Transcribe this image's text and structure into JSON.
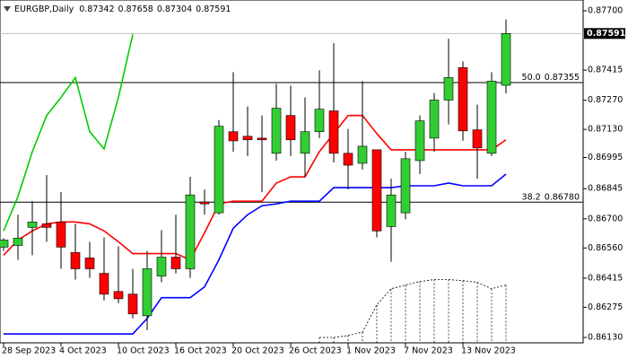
{
  "chart_data": {
    "type": "candlestick",
    "symbol": "EURGBP,Daily",
    "categories": [
      "28 Sep 2023",
      null,
      null,
      null,
      "4 Oct 2023",
      null,
      null,
      null,
      "10 Oct 2023",
      null,
      null,
      null,
      "16 Oct 2023",
      null,
      null,
      null,
      "20 Oct 2023",
      null,
      null,
      null,
      "26 Oct 2023",
      null,
      null,
      null,
      "1 Nov 2023",
      null,
      null,
      null,
      "7 Nov 2023",
      null,
      null,
      null,
      "13 Nov 2023",
      null,
      null,
      null
    ],
    "open": [
      0.86564,
      0.86572,
      0.86659,
      0.86676,
      0.86685,
      0.86538,
      0.86512,
      0.86438,
      0.86351,
      0.86338,
      0.86234,
      0.86425,
      0.86516,
      0.8646,
      0.86781,
      0.86729,
      0.87119,
      0.87097,
      0.87088,
      0.87015,
      0.87197,
      0.87015,
      0.87119,
      0.87219,
      0.87015,
      0.86967,
      0.87032,
      0.86663,
      0.86729,
      0.8698,
      0.87088,
      0.87271,
      0.87427,
      0.87128,
      0.87015,
      0.87342
    ],
    "high": [
      0.86607,
      0.8672,
      0.86785,
      0.86911,
      0.86828,
      0.86676,
      0.8659,
      0.86611,
      0.86568,
      0.8646,
      0.86546,
      0.86646,
      0.8672,
      0.86902,
      0.86841,
      0.87175,
      0.87405,
      0.8724,
      0.87197,
      0.87349,
      0.8734,
      0.87284,
      0.87414,
      0.87544,
      0.87132,
      0.87362,
      0.87032,
      0.86893,
      0.87023,
      0.87197,
      0.87305,
      0.87566,
      0.87457,
      0.87249,
      0.87405,
      0.87658
    ],
    "low": [
      0.86546,
      0.86503,
      0.86525,
      0.8659,
      0.8646,
      0.86408,
      0.86416,
      0.86308,
      0.86295,
      0.86221,
      0.86165,
      0.86395,
      0.86438,
      0.86416,
      0.8672,
      0.8672,
      0.87023,
      0.87002,
      0.86828,
      0.8698,
      0.87002,
      0.86902,
      0.87088,
      0.86971,
      0.86841,
      0.86937,
      0.86611,
      0.86494,
      0.86698,
      0.86915,
      0.87023,
      0.87154,
      0.87075,
      0.86893,
      0.87002,
      0.87304
    ],
    "close": [
      0.86598,
      0.86607,
      0.86685,
      0.86659,
      0.86564,
      0.8646,
      0.8646,
      0.86338,
      0.86316,
      0.86243,
      0.8646,
      0.86516,
      0.8646,
      0.86815,
      0.86772,
      0.87145,
      0.87075,
      0.8708,
      0.8708,
      0.87232,
      0.8708,
      0.87119,
      0.87227,
      0.87015,
      0.86958,
      0.87049,
      0.86642,
      0.86815,
      0.86989,
      0.87171,
      0.87271,
      0.87379,
      0.87123,
      0.87041,
      0.87362,
      0.87591
    ],
    "up_color": "#32cd32",
    "down_color": "#ff0000",
    "lines": [
      {
        "color": "#ff0000",
        "values": [
          0.86525,
          0.86598,
          0.86642,
          0.86676,
          0.86685,
          0.86685,
          0.86676,
          0.86642,
          0.8659,
          0.86533,
          0.86533,
          0.86533,
          0.86533,
          0.86503,
          0.86633,
          0.86772,
          0.86785,
          0.86785,
          0.86785,
          0.86872,
          0.86902,
          0.86902,
          0.87023,
          0.8711,
          0.87197,
          0.87197,
          0.8711,
          0.87032,
          0.87032,
          0.87032,
          0.87032,
          0.87032,
          0.87032,
          0.87032,
          0.87032,
          0.8708
        ]
      },
      {
        "color": "#0000ff",
        "values": [
          0.86147,
          0.86147,
          0.86147,
          0.86147,
          0.86147,
          0.86147,
          0.86147,
          0.86147,
          0.86147,
          0.86147,
          0.86221,
          0.86321,
          0.86321,
          0.86321,
          0.86373,
          0.86503,
          0.86655,
          0.8672,
          0.86763,
          0.86772,
          0.86785,
          0.86785,
          0.86785,
          0.8685,
          0.8685,
          0.8685,
          0.8685,
          0.8685,
          0.86859,
          0.86859,
          0.86859,
          0.86872,
          0.86859,
          0.86859,
          0.86859,
          0.86915
        ]
      },
      {
        "color": "#00cc00",
        "values": [
          0.86642,
          0.86807,
          0.87023,
          0.87197,
          0.87284,
          0.87379,
          0.87119,
          0.87036,
          0.87284,
          0.87587,
          null,
          null,
          null,
          null,
          null,
          null,
          null,
          null,
          null,
          null,
          null,
          null,
          null,
          null,
          null,
          null,
          null,
          null,
          null,
          null,
          null,
          null,
          null,
          null,
          null,
          null
        ]
      }
    ],
    "cloud": {
      "color": "#000000",
      "values": [
        null,
        null,
        null,
        null,
        null,
        null,
        null,
        null,
        null,
        null,
        null,
        null,
        null,
        null,
        null,
        null,
        null,
        null,
        null,
        null,
        null,
        null,
        0.8613,
        0.8613,
        0.86139,
        0.86156,
        0.86286,
        0.86364,
        0.86382,
        0.86399,
        0.86408,
        0.86408,
        0.86403,
        0.86395,
        0.86364,
        0.86382
      ]
    },
    "levels": [
      {
        "label": "50.0",
        "value": 0.87355
      },
      {
        "label": "38.2",
        "value": 0.8678,
        "value_label": "0.86780"
      }
    ],
    "ylim": [
      0.86104,
      0.87752
    ],
    "yticks": [
      {
        "value": 0.877,
        "label": "0.87700"
      },
      {
        "value": 0.87415,
        "label": "0.87415"
      },
      {
        "value": 0.8727,
        "label": "0.87270"
      },
      {
        "value": 0.8713,
        "label": "0.87130"
      },
      {
        "value": 0.86995,
        "label": "0.86995"
      },
      {
        "value": 0.86845,
        "label": "0.86845"
      },
      {
        "value": 0.867,
        "label": "0.86700"
      },
      {
        "value": 0.8656,
        "label": "0.86560"
      },
      {
        "value": 0.86415,
        "label": "0.86415"
      },
      {
        "value": 0.86275,
        "label": "0.86275"
      },
      {
        "value": 0.8613,
        "label": "0.86130"
      }
    ]
  }
}
